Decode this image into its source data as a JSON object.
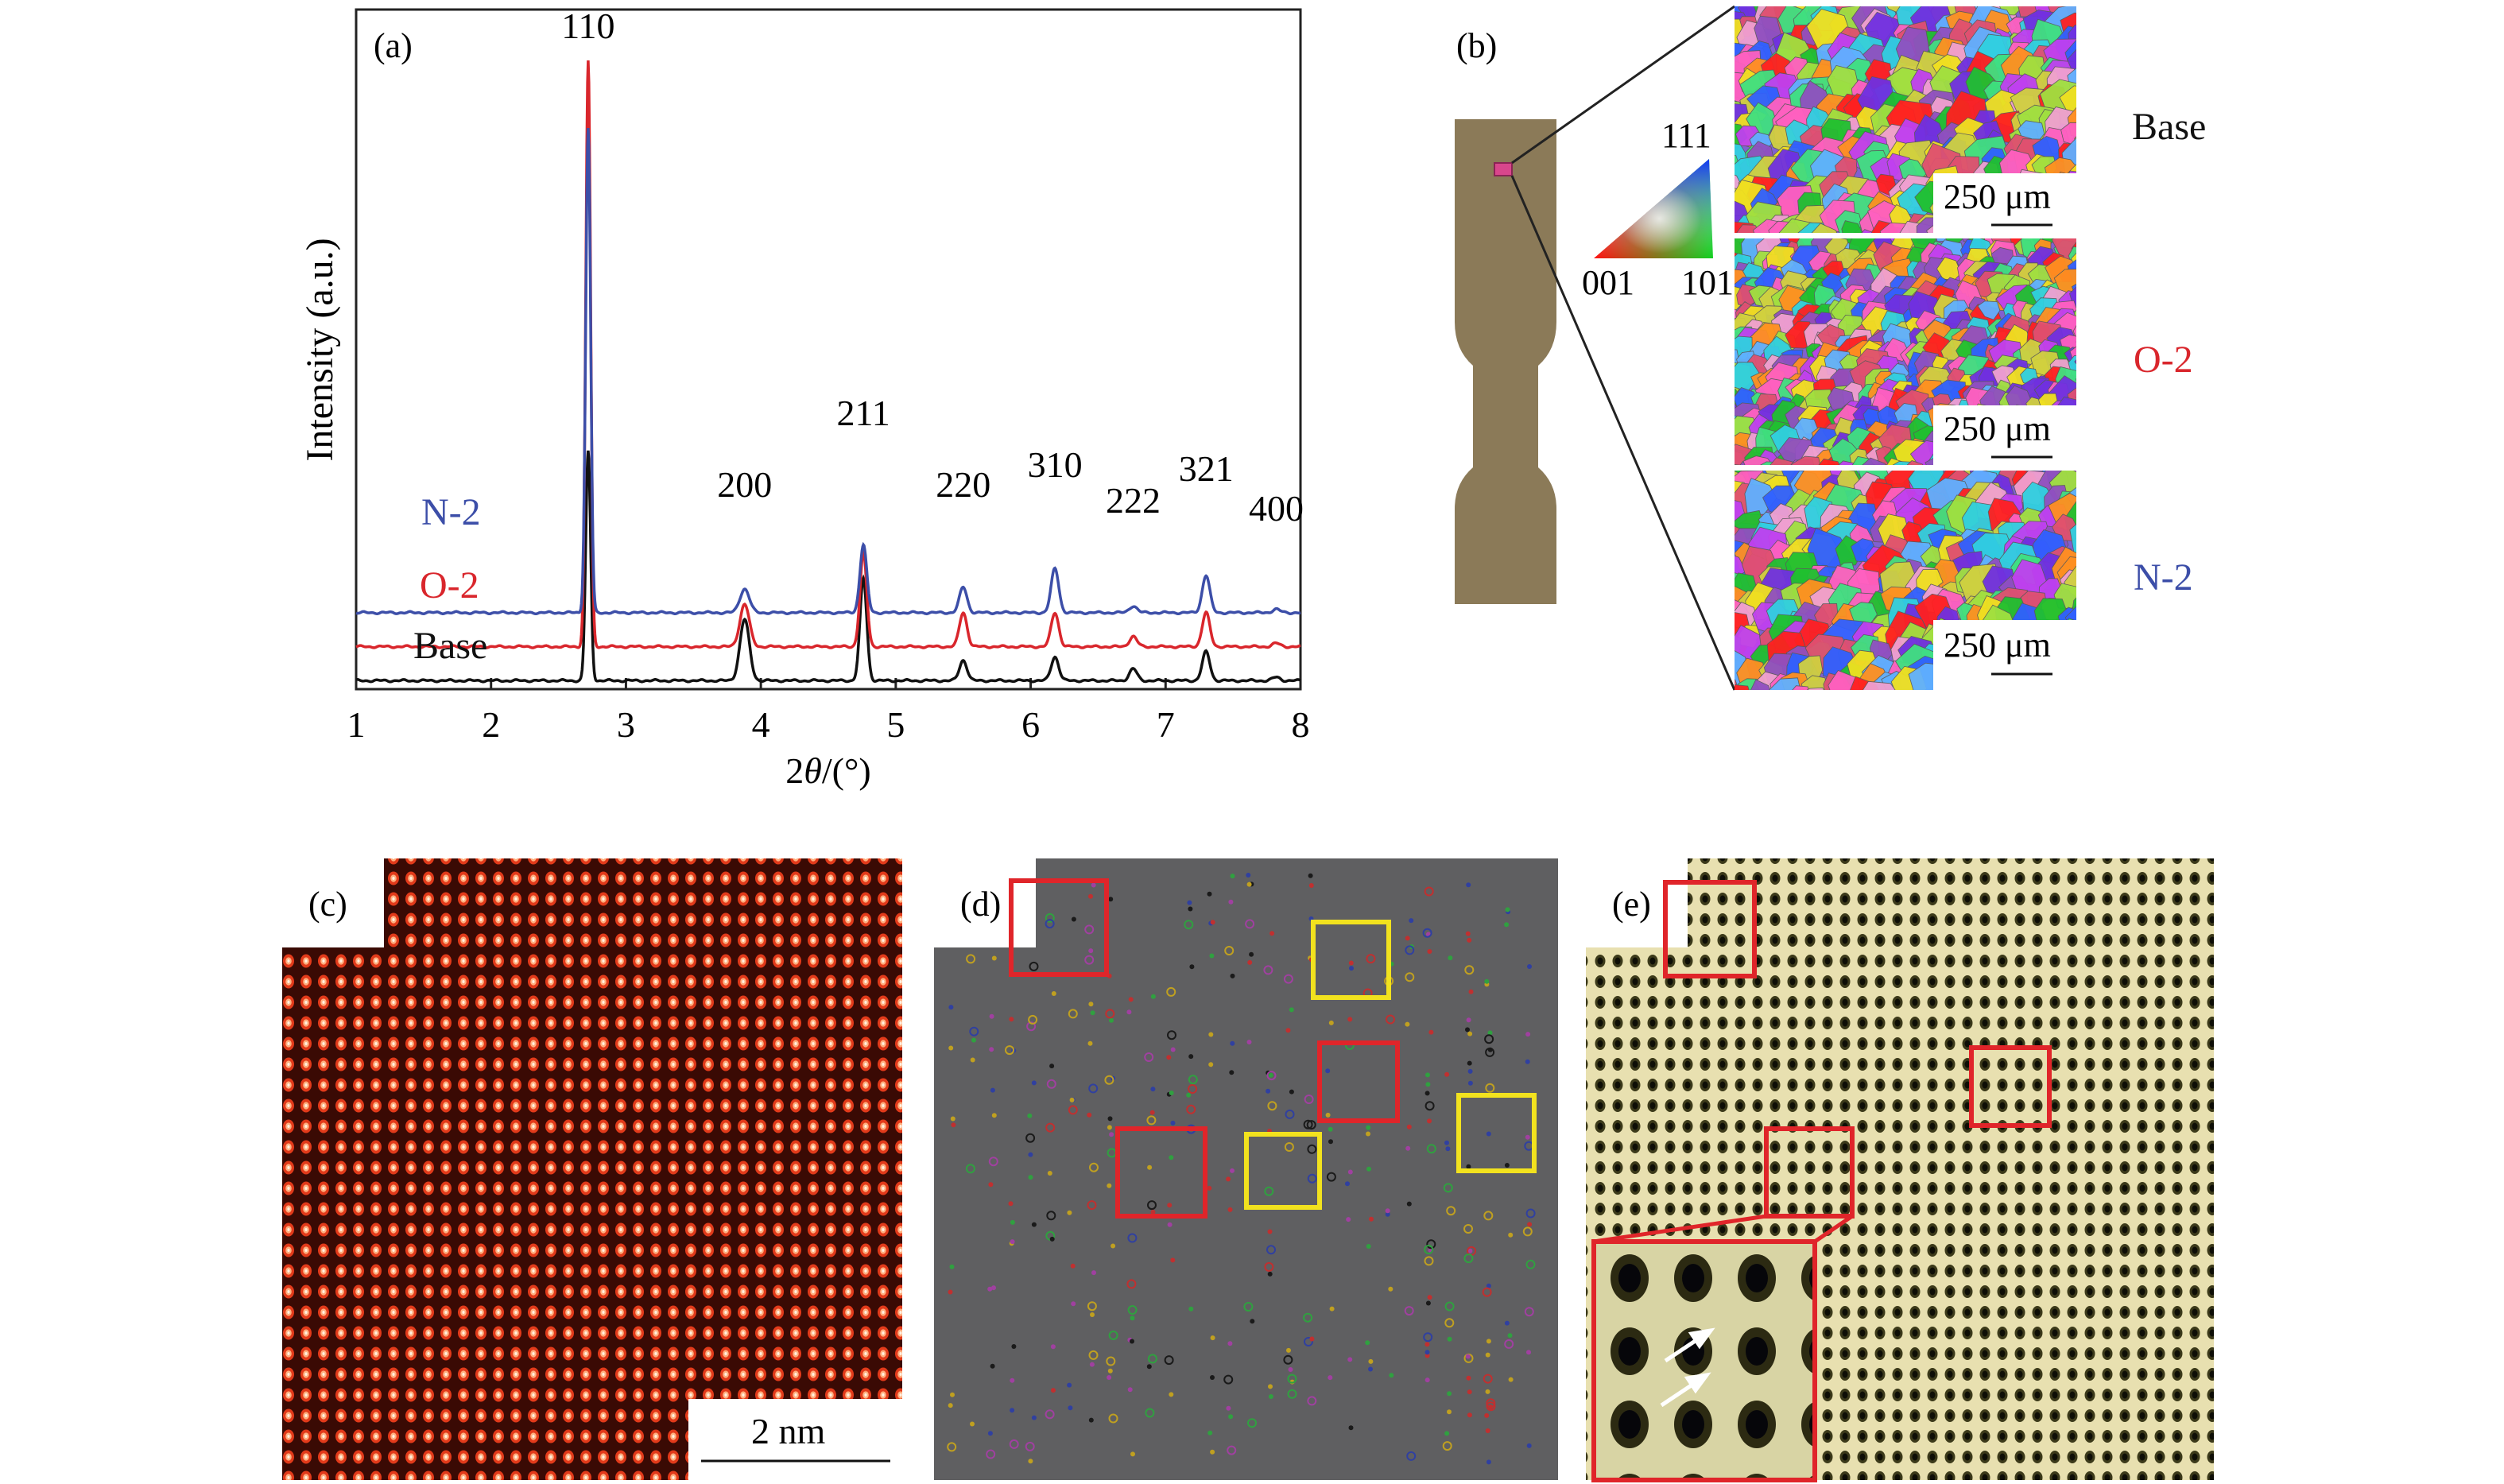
{
  "panel_a": {
    "label": "(a)",
    "ylabel": "Intensity (a.u.)",
    "xlabel_pre": "2",
    "xlabel_theta": "θ",
    "xlabel_post": "/(°)",
    "x_ticks": [
      "1",
      "2",
      "3",
      "4",
      "5",
      "6",
      "7",
      "8"
    ],
    "peak_labels": [
      {
        "x": 2.72,
        "text": "110"
      },
      {
        "x": 3.88,
        "text": "200"
      },
      {
        "x": 4.76,
        "text": "211"
      },
      {
        "x": 5.5,
        "text": "220"
      },
      {
        "x": 6.18,
        "text": "310"
      },
      {
        "x": 6.76,
        "text": "222"
      },
      {
        "x": 7.3,
        "text": "321"
      },
      {
        "x": 7.82,
        "text": "400"
      }
    ],
    "series_labels": {
      "n2": "N-2",
      "o2": "O-2",
      "base": "Base"
    },
    "colors": {
      "n2": "#3c4ea8",
      "o2": "#d9262c",
      "base": "#111111"
    }
  },
  "chart_data": {
    "type": "line",
    "xlim": [
      1,
      8
    ],
    "x_ticks": [
      1,
      2,
      3,
      4,
      5,
      6,
      7,
      8
    ],
    "peak_positions": [
      2.72,
      3.88,
      4.76,
      5.5,
      6.18,
      6.76,
      7.3,
      7.82
    ],
    "peak_indices": [
      "110",
      "200",
      "211",
      "220",
      "310",
      "222",
      "321",
      "400"
    ],
    "series": [
      {
        "name": "N-2",
        "offset": 0.4,
        "peaks": [
          2.85,
          0.14,
          0.4,
          0.15,
          0.26,
          0.04,
          0.22,
          0.02
        ]
      },
      {
        "name": "O-2",
        "offset": 0.2,
        "peaks": [
          3.45,
          0.25,
          0.55,
          0.2,
          0.2,
          0.06,
          0.2,
          0.02
        ]
      },
      {
        "name": "Base",
        "offset": 0.0,
        "peaks": [
          1.35,
          0.36,
          0.6,
          0.12,
          0.14,
          0.07,
          0.17,
          0.02
        ]
      }
    ],
    "ylim": [
      -0.05,
      3.95
    ],
    "ylabel": "Intensity (a.u.)"
  },
  "panel_b": {
    "label": "(b)",
    "ipf": {
      "top": "111",
      "left": "001",
      "right": "101"
    },
    "scale_bar": "250 μm",
    "maps": [
      {
        "label": "Base",
        "color": "#111111"
      },
      {
        "label": "O-2",
        "color": "#d9262c"
      },
      {
        "label": "N-2",
        "color": "#3c4ea8"
      }
    ],
    "specimen_color": "#8b7a58"
  },
  "panel_c": {
    "label": "(c)",
    "scale_bar": "2 nm"
  },
  "panel_d": {
    "label": "(d)"
  },
  "panel_e": {
    "label": "(e)"
  }
}
